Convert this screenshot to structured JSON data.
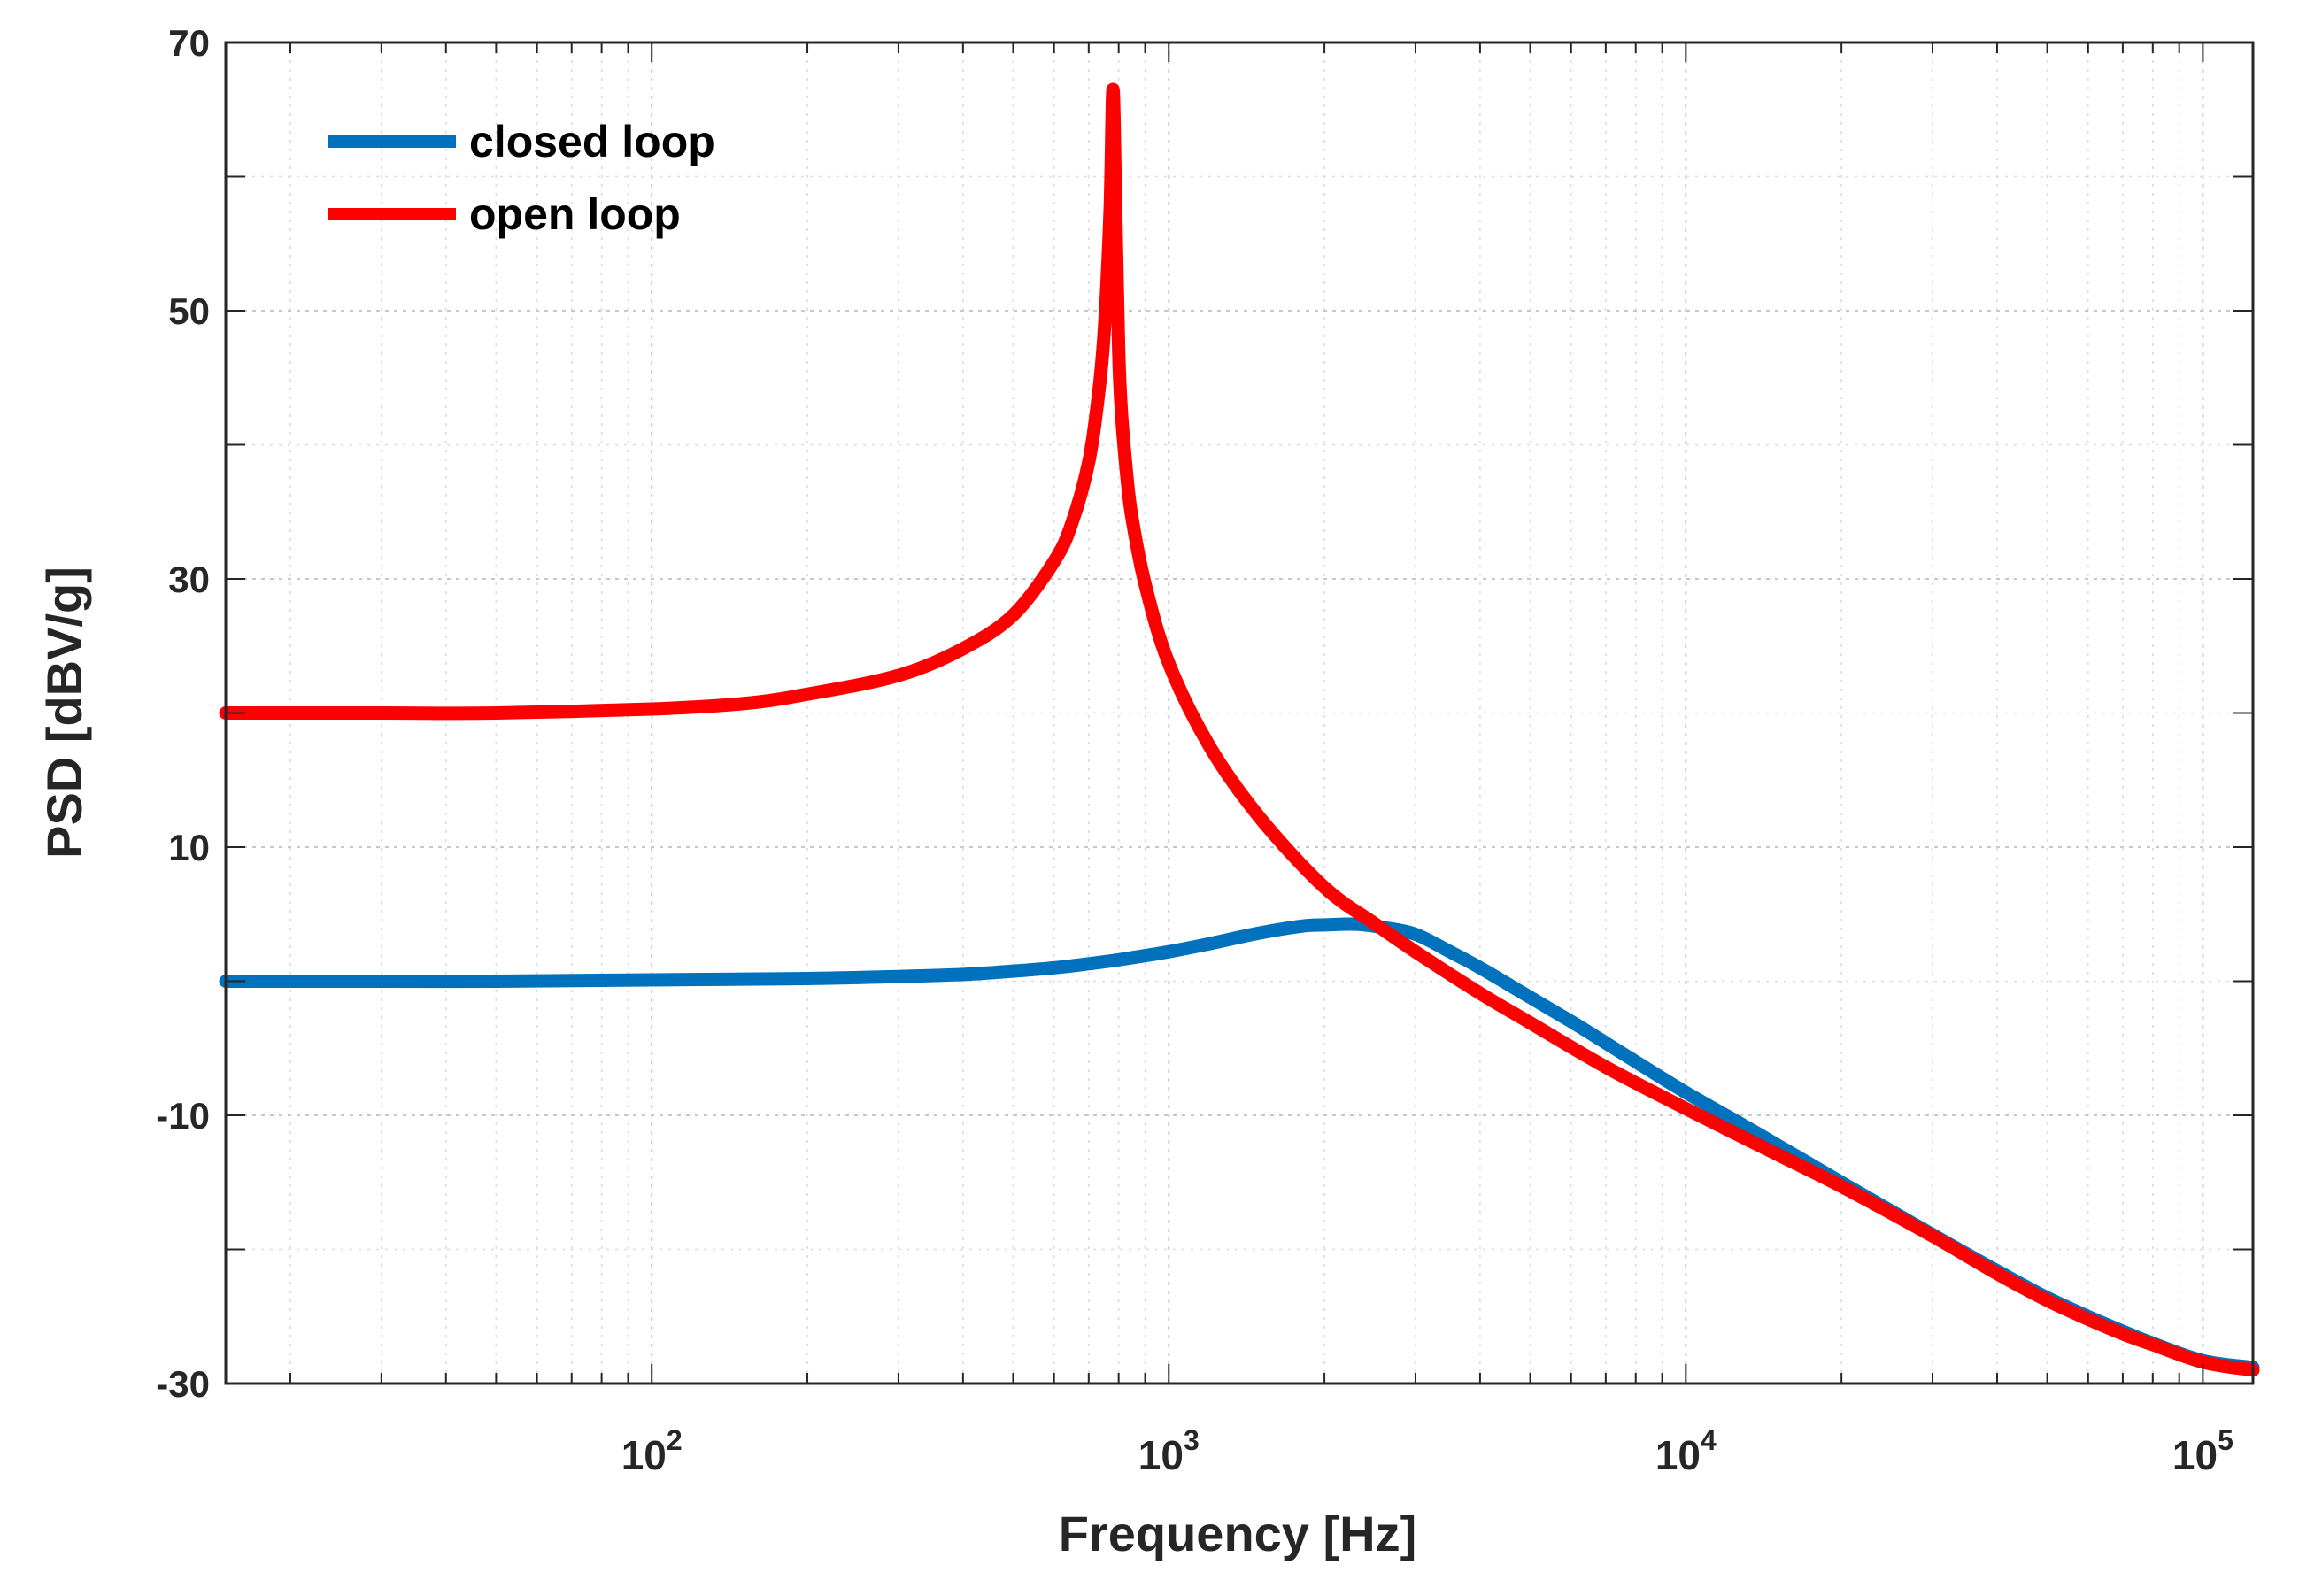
{
  "chart_data": {
    "type": "line",
    "xscale": "log",
    "xlabel": "Frequency [Hz]",
    "ylabel": "PSD [dBV/g]",
    "xlim": [
      15,
      125000
    ],
    "ylim": [
      -30,
      70
    ],
    "x_ticks": [
      {
        "value": 100,
        "base": "10",
        "exp": "2"
      },
      {
        "value": 1000,
        "base": "10",
        "exp": "3"
      },
      {
        "value": 10000,
        "base": "10",
        "exp": "4"
      },
      {
        "value": 100000,
        "base": "10",
        "exp": "5"
      }
    ],
    "y_ticks": [
      "-30",
      "-10",
      "10",
      "30",
      "50",
      "70"
    ],
    "grid": true,
    "legend_position": "top-left",
    "series": [
      {
        "name": "closed loop",
        "color": "#0072BD",
        "x": [
          15,
          30,
          50,
          100,
          200,
          300,
          400,
          500,
          600,
          700,
          800,
          1000,
          1200,
          1500,
          1800,
          2000,
          2300,
          2600,
          3000,
          3500,
          4000,
          5000,
          6000,
          7000,
          8000,
          10000,
          13000,
          15000,
          20000,
          30000,
          40000,
          50000,
          60000,
          70000,
          80000,
          100000,
          125000
        ],
        "values": [
          0,
          0,
          0,
          0.1,
          0.2,
          0.35,
          0.5,
          0.75,
          1,
          1.3,
          1.6,
          2.2,
          2.8,
          3.6,
          4.1,
          4.2,
          4.25,
          4.0,
          3.5,
          2.2,
          1.0,
          -1.2,
          -3.0,
          -4.6,
          -6.0,
          -8.3,
          -10.8,
          -12.2,
          -15.0,
          -18.9,
          -21.6,
          -23.6,
          -25.0,
          -26.1,
          -27.0,
          -28.3,
          -28.8
        ]
      },
      {
        "name": "open loop",
        "color": "#FF0000",
        "x": [
          15,
          30,
          50,
          100,
          150,
          200,
          300,
          400,
          500,
          600,
          650,
          700,
          730,
          750,
          770,
          780,
          790,
          800,
          810,
          830,
          850,
          900,
          1000,
          1200,
          1500,
          2000,
          2500,
          3000,
          4000,
          5000,
          7000,
          10000,
          15000,
          20000,
          30000,
          40000,
          50000,
          60000,
          70000,
          80000,
          100000,
          125000
        ],
        "values": [
          20,
          20,
          20,
          20.3,
          20.7,
          21.4,
          22.8,
          24.8,
          27.3,
          31.3,
          34.2,
          38.7,
          43.5,
          48.4,
          57.5,
          66.5,
          57.0,
          47.0,
          42.4,
          37.6,
          34.4,
          29.6,
          23.7,
          17.5,
          12.2,
          7.0,
          4.3,
          2.2,
          -0.9,
          -3.1,
          -6.4,
          -9.5,
          -12.9,
          -15.3,
          -19.0,
          -21.8,
          -23.8,
          -25.2,
          -26.3,
          -27.1,
          -28.4,
          -29.0
        ]
      }
    ]
  }
}
